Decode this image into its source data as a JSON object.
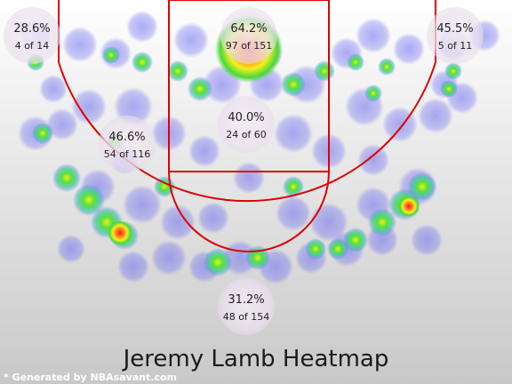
{
  "chart_data": {
    "type": "heatmap",
    "title": "Jeremy Lamb Heatmap",
    "footer": "* Generated by NBAsavant.com",
    "zones": [
      {
        "id": "left-corner-three",
        "pct": "28.6%",
        "made": 4,
        "attempts": 14,
        "label": "4 of 14"
      },
      {
        "id": "restricted-area",
        "pct": "64.2%",
        "made": 97,
        "attempts": 151,
        "label": "97 of 151"
      },
      {
        "id": "right-corner-three",
        "pct": "45.5%",
        "made": 5,
        "attempts": 11,
        "label": "5 of 11"
      },
      {
        "id": "left-mid-range",
        "pct": "46.6%",
        "made": 54,
        "attempts": 116,
        "label": "54 of 116"
      },
      {
        "id": "paint-non-ra",
        "pct": "40.0%",
        "made": 24,
        "attempts": 60,
        "label": "24 of 60"
      },
      {
        "id": "above-break-three",
        "pct": "31.2%",
        "made": 48,
        "attempts": 154,
        "label": "48 of 154"
      }
    ],
    "colors": {
      "background_top": "#ffffff",
      "background_bottom": "#c8c8c8",
      "court_lines": "#e00000",
      "cold": "#5a5af0",
      "warm": "#2bd83a",
      "mid": "#e8f21a",
      "hot": "#ff2a1a",
      "zone_bubble": "#ebe4ee",
      "title": "#1a1a1a",
      "footer": "#ffffff"
    }
  }
}
